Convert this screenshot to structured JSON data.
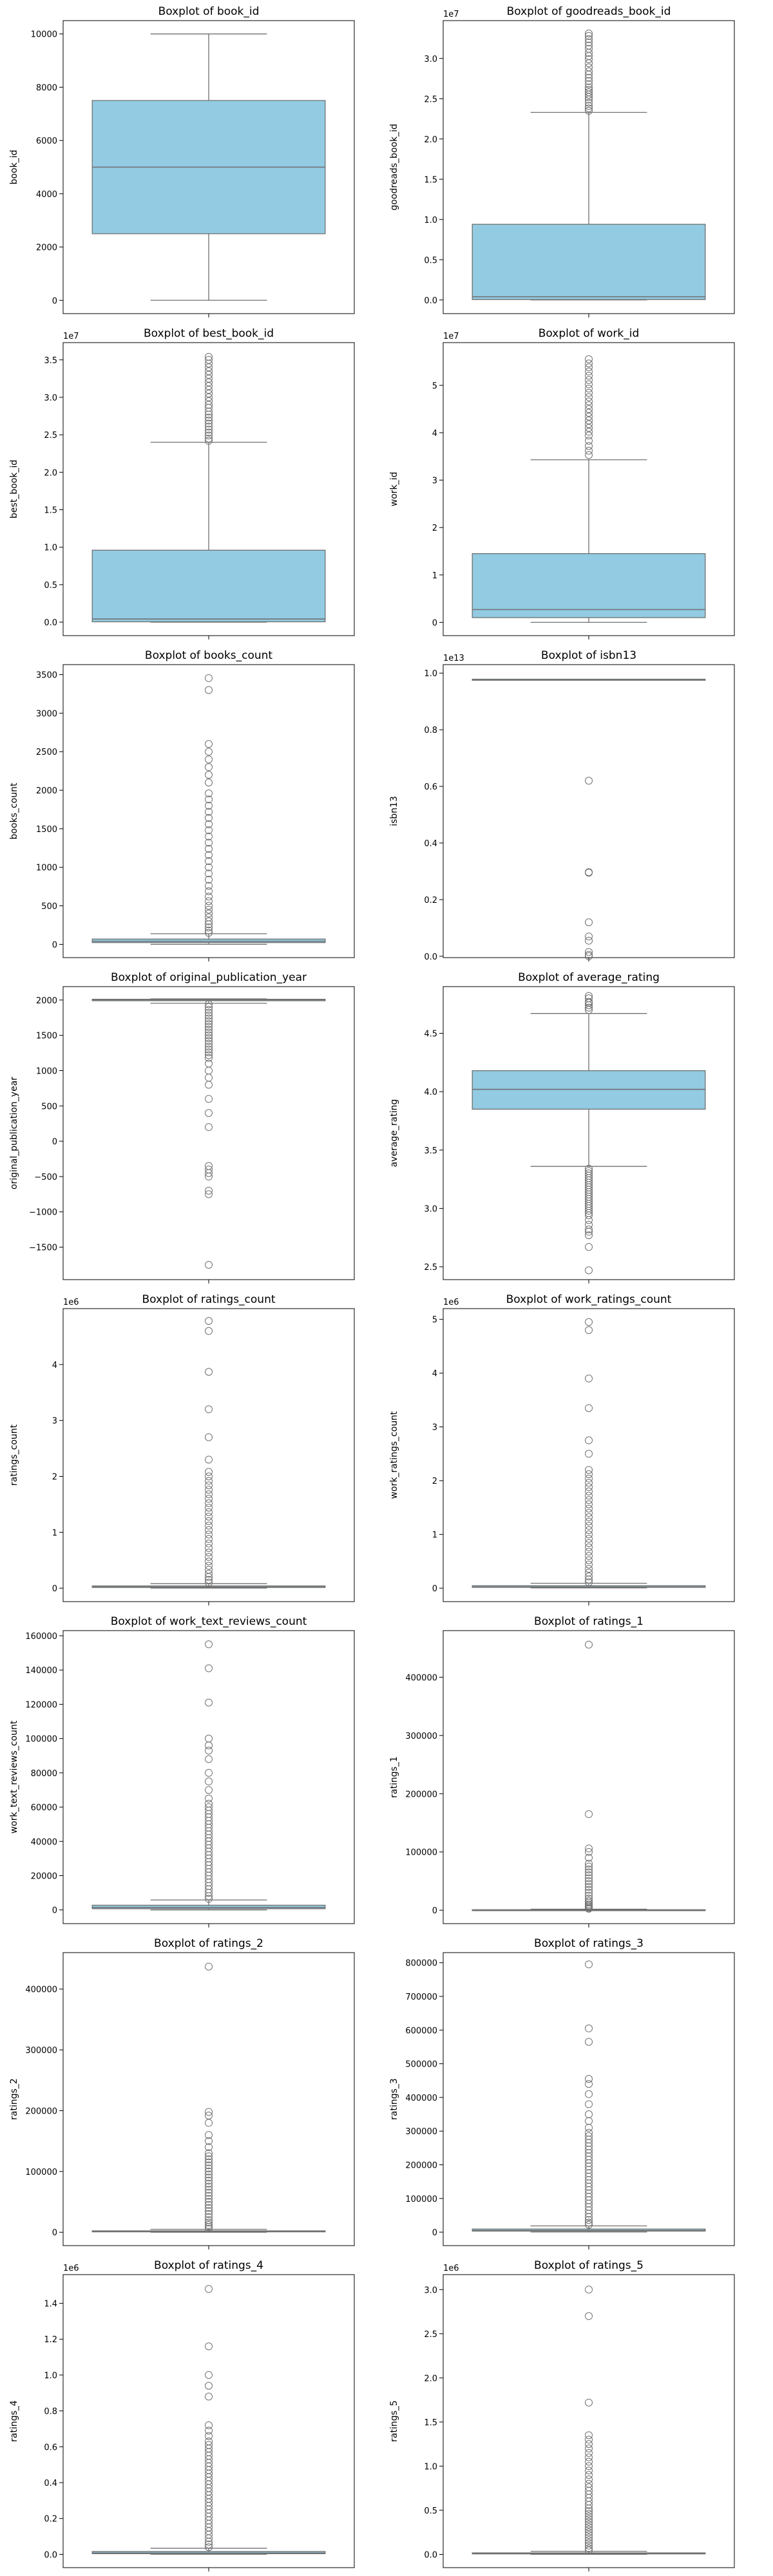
{
  "colors": {
    "box_fill": "#92cbe2",
    "box_edge": "#707070",
    "frame": "#000000",
    "text": "#000000"
  },
  "chart_data": [
    {
      "type": "box",
      "title": "Boxplot of book_id",
      "ylabel": "book_id",
      "ylim": [
        -500,
        10500
      ],
      "ticks": [
        0,
        2000,
        4000,
        6000,
        8000,
        10000
      ],
      "tick_labels": [
        "0",
        "2000",
        "4000",
        "6000",
        "8000",
        "10000"
      ],
      "offset_label": "",
      "stats": {
        "whisker_low": 1,
        "q1": 2500,
        "median": 5000,
        "q3": 7500,
        "whisker_high": 10000
      },
      "outliers": []
    },
    {
      "type": "box",
      "title": "Boxplot of goodreads_book_id",
      "ylabel": "goodreads_book_id",
      "ylim": [
        -1700000,
        34700000
      ],
      "ticks": [
        0,
        5000000,
        10000000,
        15000000,
        20000000,
        25000000,
        30000000
      ],
      "tick_labels": [
        "0.0",
        "0.5",
        "1.0",
        "1.5",
        "2.0",
        "2.5",
        "3.0"
      ],
      "offset_label": "1e7",
      "stats": {
        "whisker_low": 1,
        "q1": 47000,
        "median": 400000,
        "q3": 9400000,
        "whisker_high": 23300000
      },
      "outliers": [
        23500000,
        23800000,
        24100000,
        24500000,
        24900000,
        25200000,
        25500000,
        25800000,
        26100000,
        26400000,
        26800000,
        27200000,
        27600000,
        28000000,
        28400000,
        28900000,
        29400000,
        29900000,
        30300000,
        30700000,
        31200000,
        31600000,
        32000000,
        32400000,
        32800000,
        33100000
      ]
    },
    {
      "type": "box",
      "title": "Boxplot of best_book_id",
      "ylabel": "best_book_id",
      "ylim": [
        -1800000,
        37300000
      ],
      "ticks": [
        0,
        5000000,
        10000000,
        15000000,
        20000000,
        25000000,
        30000000,
        35000000
      ],
      "tick_labels": [
        "0.0",
        "0.5",
        "1.0",
        "1.5",
        "2.0",
        "2.5",
        "3.0",
        "3.5"
      ],
      "offset_label": "1e7",
      "stats": {
        "whisker_low": 1,
        "q1": 47000,
        "median": 420000,
        "q3": 9600000,
        "whisker_high": 24000000
      },
      "outliers": [
        24200000,
        24500000,
        24900000,
        25300000,
        25700000,
        26100000,
        26500000,
        26900000,
        27300000,
        27700000,
        28100000,
        28600000,
        29000000,
        29500000,
        30000000,
        30500000,
        31000000,
        31500000,
        32000000,
        32500000,
        33000000,
        33500000,
        34000000,
        34500000,
        35000000,
        35400000
      ]
    },
    {
      "type": "box",
      "title": "Boxplot of work_id",
      "ylabel": "work_id",
      "ylim": [
        -2800000,
        59000000
      ],
      "ticks": [
        0,
        10000000,
        20000000,
        30000000,
        40000000,
        50000000
      ],
      "tick_labels": [
        "0",
        "1",
        "2",
        "3",
        "4",
        "5"
      ],
      "offset_label": "1e7",
      "stats": {
        "whisker_low": 87,
        "q1": 1000000,
        "median": 2700000,
        "q3": 14500000,
        "whisker_high": 34300000
      },
      "outliers": [
        35300000,
        36200000,
        37200000,
        38300000,
        39400000,
        40200000,
        41000000,
        41800000,
        42600000,
        43400000,
        44200000,
        45000000,
        45800000,
        46600000,
        47500000,
        48400000,
        49300000,
        50200000,
        51100000,
        52000000,
        52900000,
        53800000,
        54600000,
        55500000
      ]
    },
    {
      "type": "box",
      "title": "Boxplot of books_count",
      "ylabel": "books_count",
      "ylim": [
        -172,
        3630
      ],
      "ticks": [
        0,
        500,
        1000,
        1500,
        2000,
        2500,
        3000,
        3500
      ],
      "tick_labels": [
        "0",
        "500",
        "1000",
        "1500",
        "2000",
        "2500",
        "3000",
        "3500"
      ],
      "offset_label": "",
      "stats": {
        "whisker_low": 1,
        "q1": 23,
        "median": 40,
        "q3": 69,
        "whisker_high": 138
      },
      "outliers": [
        150,
        180,
        220,
        260,
        300,
        350,
        400,
        450,
        500,
        560,
        620,
        690,
        760,
        840,
        920,
        1000,
        1080,
        1160,
        1240,
        1320,
        1400,
        1480,
        1560,
        1640,
        1720,
        1800,
        1880,
        1960,
        2100,
        2200,
        2300,
        2400,
        2500,
        2600,
        3300,
        3455
      ]
    },
    {
      "type": "box",
      "title": "Boxplot of isbn13",
      "ylabel": "isbn13",
      "ylim": [
        -49000000000,
        10300000000000
      ],
      "ticks": [
        0,
        2000000000000,
        4000000000000,
        6000000000000,
        8000000000000,
        10000000000000
      ],
      "tick_labels": [
        "0.0",
        "0.2",
        "0.4",
        "0.6",
        "0.8",
        "1.0"
      ],
      "offset_label": "1e13",
      "stats": {
        "whisker_low": 9780000000000,
        "q1": 9780000000000,
        "median": 9780000000000,
        "q3": 9780000000000,
        "whisker_high": 9780000000000
      },
      "outliers": [
        6200000000000,
        2970000000000,
        2950000000000,
        1200000000000,
        700000000000,
        550000000000,
        150000000000,
        50000000000,
        0
      ]
    },
    {
      "type": "box",
      "title": "Boxplot of original_publication_year",
      "ylabel": "original_publication_year",
      "ylim": [
        -1960,
        2190
      ],
      "ticks": [
        -1500,
        -1000,
        -500,
        0,
        500,
        1000,
        1500,
        2000
      ],
      "tick_labels": [
        "−1500",
        "−1000",
        "−500",
        "0",
        "500",
        "1000",
        "1500",
        "2000"
      ],
      "offset_label": "",
      "stats": {
        "whisker_low": 1954,
        "q1": 1990,
        "median": 2004,
        "q3": 2011,
        "whisker_high": 2017
      },
      "outliers": [
        1940,
        1900,
        1860,
        1820,
        1780,
        1740,
        1700,
        1660,
        1620,
        1580,
        1540,
        1500,
        1460,
        1420,
        1380,
        1340,
        1300,
        1260,
        1220,
        1180,
        1100,
        1000,
        900,
        800,
        600,
        400,
        200,
        -350,
        -400,
        -450,
        -500,
        -700,
        -750,
        -1750
      ]
    },
    {
      "type": "box",
      "title": "Boxplot of average_rating",
      "ylabel": "average_rating",
      "ylim": [
        2.39,
        4.9
      ],
      "ticks": [
        2.5,
        3.0,
        3.5,
        4.0,
        4.5
      ],
      "tick_labels": [
        "2.5",
        "3.0",
        "3.5",
        "4.0",
        "4.5"
      ],
      "offset_label": "",
      "stats": {
        "whisker_low": 3.36,
        "q1": 3.85,
        "median": 4.02,
        "q3": 4.18,
        "whisker_high": 4.67
      },
      "outliers": [
        3.34,
        3.32,
        3.3,
        3.28,
        3.26,
        3.24,
        3.22,
        3.2,
        3.18,
        3.16,
        3.14,
        3.12,
        3.1,
        3.08,
        3.06,
        3.04,
        3.02,
        3.0,
        2.98,
        2.96,
        2.94,
        2.9,
        2.86,
        2.82,
        2.8,
        2.77,
        2.67,
        2.47,
        4.7,
        4.72,
        4.74,
        4.76,
        4.77,
        4.8,
        4.82
      ]
    },
    {
      "type": "box",
      "title": "Boxplot of ratings_count",
      "ylabel": "ratings_count",
      "ylim": [
        -240000,
        5000000
      ],
      "ticks": [
        0,
        1000000,
        2000000,
        3000000,
        4000000
      ],
      "tick_labels": [
        "0",
        "1",
        "2",
        "3",
        "4"
      ],
      "offset_label": "1e6",
      "stats": {
        "whisker_low": 2716,
        "q1": 13570,
        "median": 21155,
        "q3": 41053,
        "whisker_high": 82000
      },
      "outliers": [
        100000,
        150000,
        200000,
        260000,
        330000,
        400000,
        480000,
        560000,
        640000,
        720000,
        800000,
        880000,
        960000,
        1040000,
        1120000,
        1200000,
        1280000,
        1360000,
        1440000,
        1520000,
        1600000,
        1680000,
        1760000,
        1840000,
        1920000,
        2000000,
        2080000,
        2300000,
        2700000,
        3200000,
        3870000,
        4600000,
        4780000
      ]
    },
    {
      "type": "box",
      "title": "Boxplot of work_ratings_count",
      "ylabel": "work_ratings_count",
      "ylim": [
        -250000,
        5200000
      ],
      "ticks": [
        0,
        1000000,
        2000000,
        3000000,
        4000000,
        5000000
      ],
      "tick_labels": [
        "0",
        "1",
        "2",
        "3",
        "4",
        "5"
      ],
      "offset_label": "1e6",
      "stats": {
        "whisker_low": 5510,
        "q1": 15438,
        "median": 23832,
        "q3": 45916,
        "whisker_high": 91000
      },
      "outliers": [
        110000,
        160000,
        220000,
        290000,
        360000,
        440000,
        520000,
        600000,
        680000,
        760000,
        840000,
        920000,
        1000000,
        1080000,
        1160000,
        1240000,
        1320000,
        1400000,
        1480000,
        1560000,
        1640000,
        1720000,
        1800000,
        1880000,
        1960000,
        2040000,
        2120000,
        2200000,
        2500000,
        2750000,
        3350000,
        3900000,
        4800000,
        4950000
      ]
    },
    {
      "type": "box",
      "title": "Boxplot of work_text_reviews_count",
      "ylabel": "work_text_reviews_count",
      "ylim": [
        -8000,
        163000
      ],
      "ticks": [
        0,
        20000,
        40000,
        60000,
        80000,
        100000,
        120000,
        140000,
        160000
      ],
      "tick_labels": [
        "0",
        "20000",
        "40000",
        "60000",
        "80000",
        "100000",
        "120000",
        "140000",
        "160000"
      ],
      "offset_label": "",
      "stats": {
        "whisker_low": 3,
        "q1": 694,
        "median": 1402,
        "q3": 2744,
        "whisker_high": 5800
      },
      "outliers": [
        6500,
        8000,
        10000,
        12000,
        14000,
        16000,
        18000,
        20000,
        22000,
        24000,
        26000,
        28000,
        30000,
        32000,
        34000,
        36000,
        38000,
        40000,
        42000,
        44000,
        46000,
        48000,
        50000,
        52000,
        54000,
        56000,
        58000,
        60000,
        62000,
        65000,
        70000,
        75000,
        80000,
        88000,
        93000,
        96000,
        100000,
        121000,
        141000,
        155000
      ]
    },
    {
      "type": "box",
      "title": "Boxplot of ratings_1",
      "ylabel": "ratings_1",
      "ylim": [
        -23000,
        480000
      ],
      "ticks": [
        0,
        100000,
        200000,
        300000,
        400000
      ],
      "tick_labels": [
        "0",
        "100000",
        "200000",
        "300000",
        "400000"
      ],
      "offset_label": "",
      "stats": {
        "whisker_low": 11,
        "q1": 196,
        "median": 391,
        "q3": 885,
        "whisker_high": 1900
      },
      "outliers": [
        2500,
        4000,
        6000,
        8000,
        10000,
        13000,
        16000,
        20000,
        25000,
        30000,
        35000,
        40000,
        45000,
        50000,
        55000,
        60000,
        65000,
        70000,
        75000,
        80000,
        90000,
        100000,
        106000,
        165000,
        456000
      ]
    },
    {
      "type": "box",
      "title": "Boxplot of ratings_2",
      "ylabel": "ratings_2",
      "ylim": [
        -22000,
        460000
      ],
      "ticks": [
        0,
        100000,
        200000,
        300000,
        400000
      ],
      "tick_labels": [
        "0",
        "100000",
        "200000",
        "300000",
        "400000"
      ],
      "offset_label": "",
      "stats": {
        "whisker_low": 30,
        "q1": 656,
        "median": 1163,
        "q3": 2353,
        "whisker_high": 4900
      },
      "outliers": [
        6000,
        9000,
        12000,
        16000,
        20000,
        25000,
        30000,
        35000,
        40000,
        45000,
        50000,
        55000,
        60000,
        65000,
        70000,
        75000,
        80000,
        85000,
        90000,
        95000,
        100000,
        105000,
        110000,
        115000,
        120000,
        125000,
        130000,
        140000,
        150000,
        160000,
        180000,
        192000,
        198000,
        437000
      ]
    },
    {
      "type": "box",
      "title": "Boxplot of ratings_3",
      "ylabel": "ratings_3",
      "ylim": [
        -40000,
        830000
      ],
      "ticks": [
        0,
        100000,
        200000,
        300000,
        400000,
        500000,
        600000,
        700000,
        800000
      ],
      "tick_labels": [
        "0",
        "100000",
        "200000",
        "300000",
        "400000",
        "500000",
        "600000",
        "700000",
        "800000"
      ],
      "offset_label": "",
      "stats": {
        "whisker_low": 323,
        "q1": 3112,
        "median": 4894,
        "q3": 9287,
        "whisker_high": 18500
      },
      "outliers": [
        22000,
        28000,
        36000,
        45000,
        55000,
        65000,
        75000,
        85000,
        95000,
        105000,
        115000,
        125000,
        135000,
        145000,
        155000,
        165000,
        175000,
        185000,
        195000,
        205000,
        215000,
        225000,
        235000,
        245000,
        255000,
        265000,
        275000,
        285000,
        295000,
        310000,
        330000,
        350000,
        380000,
        410000,
        440000,
        455000,
        565000,
        605000,
        795000
      ]
    },
    {
      "type": "box",
      "title": "Boxplot of ratings_4",
      "ylabel": "ratings_4",
      "ylim": [
        -74000,
        1560000
      ],
      "ticks": [
        0,
        200000,
        400000,
        600000,
        800000,
        1000000,
        1200000,
        1400000
      ],
      "tick_labels": [
        "0.0",
        "0.2",
        "0.4",
        "0.6",
        "0.8",
        "1.0",
        "1.2",
        "1.4"
      ],
      "offset_label": "1e6",
      "stats": {
        "whisker_low": 750,
        "q1": 3700,
        "median": 7000,
        "q3": 16000,
        "whisker_high": 34000
      },
      "outliers": [
        40000,
        55000,
        70000,
        90000,
        110000,
        130000,
        150000,
        170000,
        190000,
        210000,
        230000,
        250000,
        270000,
        290000,
        310000,
        330000,
        350000,
        370000,
        390000,
        410000,
        430000,
        450000,
        470000,
        490000,
        510000,
        530000,
        550000,
        570000,
        590000,
        610000,
        630000,
        660000,
        690000,
        720000,
        880000,
        940000,
        1000000,
        1160000,
        1480000
      ]
    },
    {
      "type": "box",
      "title": "Boxplot of ratings_5",
      "ylabel": "ratings_5",
      "ylim": [
        -150000,
        3170000
      ],
      "ticks": [
        0,
        500000,
        1000000,
        1500000,
        2000000,
        2500000,
        3000000
      ],
      "tick_labels": [
        "0.0",
        "0.5",
        "1.0",
        "1.5",
        "2.0",
        "2.5",
        "3.0"
      ],
      "offset_label": "1e6",
      "stats": {
        "whisker_low": 754,
        "q1": 5334,
        "median": 8836,
        "q3": 17304,
        "whisker_high": 35000
      },
      "outliers": [
        45000,
        70000,
        100000,
        130000,
        160000,
        190000,
        220000,
        250000,
        280000,
        310000,
        340000,
        370000,
        400000,
        430000,
        460000,
        490000,
        520000,
        560000,
        600000,
        640000,
        680000,
        720000,
        760000,
        800000,
        850000,
        900000,
        950000,
        1000000,
        1050000,
        1100000,
        1150000,
        1200000,
        1250000,
        1300000,
        1350000,
        1720000,
        2700000,
        3000000
      ]
    }
  ]
}
